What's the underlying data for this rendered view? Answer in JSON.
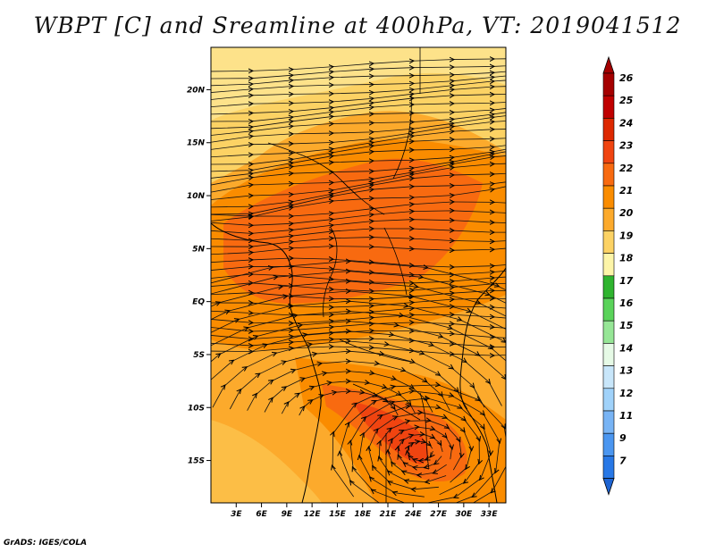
{
  "title": "WBPT [C] and Sreamline at 400hPa, VT: 2019041512",
  "credit": "GrADS: IGES/COLA",
  "map": {
    "lat_range": [
      -19,
      24
    ],
    "lon_range": [
      0,
      35
    ],
    "lat_ticks": [
      {
        "value": 20,
        "label": "20N"
      },
      {
        "value": 15,
        "label": "15N"
      },
      {
        "value": 10,
        "label": "10N"
      },
      {
        "value": 5,
        "label": "5N"
      },
      {
        "value": 0,
        "label": "EQ"
      },
      {
        "value": -5,
        "label": "5S"
      },
      {
        "value": -10,
        "label": "10S"
      },
      {
        "value": -15,
        "label": "15S"
      }
    ],
    "lon_ticks": [
      {
        "value": 3,
        "label": "3E"
      },
      {
        "value": 6,
        "label": "6E"
      },
      {
        "value": 9,
        "label": "9E"
      },
      {
        "value": 12,
        "label": "12E"
      },
      {
        "value": 15,
        "label": "15E"
      },
      {
        "value": 18,
        "label": "18E"
      },
      {
        "value": 21,
        "label": "21E"
      },
      {
        "value": 24,
        "label": "24E"
      },
      {
        "value": 27,
        "label": "27E"
      },
      {
        "value": 30,
        "label": "30E"
      },
      {
        "value": 33,
        "label": "33E"
      }
    ]
  },
  "colorbar": {
    "levels": [
      {
        "label": "26",
        "color": "#a50000"
      },
      {
        "label": "25",
        "color": "#c00000"
      },
      {
        "label": "24",
        "color": "#dd2800"
      },
      {
        "label": "23",
        "color": "#f04410"
      },
      {
        "label": "22",
        "color": "#f86a10"
      },
      {
        "label": "21",
        "color": "#fa8c00"
      },
      {
        "label": "20",
        "color": "#fcaa2c"
      },
      {
        "label": "19",
        "color": "#fcd264"
      },
      {
        "label": "18",
        "color": "#fdf5a8"
      },
      {
        "label": "17",
        "color": "#2fb42f"
      },
      {
        "label": "16",
        "color": "#5ad35a"
      },
      {
        "label": "15",
        "color": "#96e696"
      },
      {
        "label": "14",
        "color": "#e6fae6"
      },
      {
        "label": "13",
        "color": "#c8e6fa"
      },
      {
        "label": "12",
        "color": "#a0d2fa"
      },
      {
        "label": "11",
        "color": "#78b4f5"
      },
      {
        "label": "9",
        "color": "#4b96f0"
      },
      {
        "label": "7",
        "color": "#2878e6"
      }
    ],
    "bottom_color": "#1e64d2"
  }
}
